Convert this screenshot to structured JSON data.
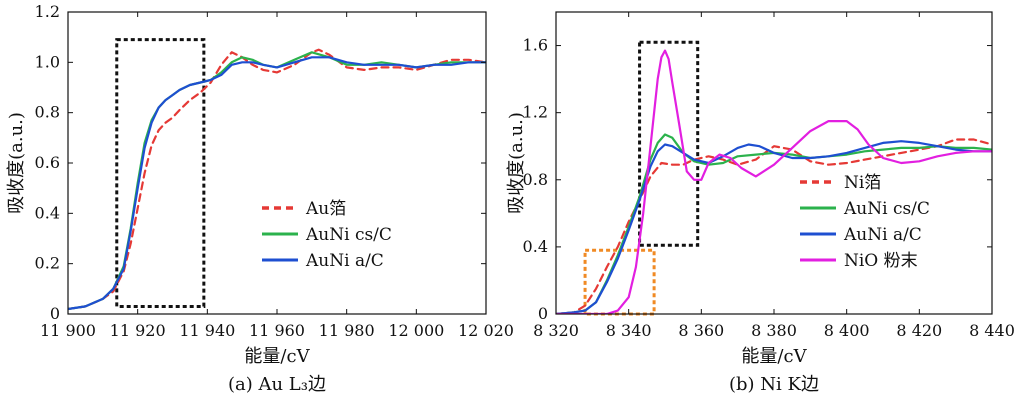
{
  "chart_data": [
    {
      "type": "line",
      "caption": "(a) Au L₃边",
      "xlabel": "能量/cV",
      "ylabel": "吸收度(a.u.)",
      "xlim": [
        11900,
        12020
      ],
      "ylim": [
        0,
        1.2
      ],
      "xticks": [
        11900,
        11920,
        11940,
        11960,
        11980,
        12000,
        12020
      ],
      "xtick_labels": [
        "11 900",
        "11 920",
        "11 940",
        "11 960",
        "11 980",
        "12 000",
        "12 020"
      ],
      "yticks": [
        0,
        0.2,
        0.4,
        0.6,
        0.8,
        1.0,
        1.2
      ],
      "ytick_labels": [
        "0",
        "0.2",
        "0.4",
        "0.6",
        "0.8",
        "1.0",
        "1.2"
      ],
      "legend_position": "right",
      "highlight_boxes": [
        {
          "x": [
            11914,
            11939
          ],
          "y": [
            0.03,
            1.09
          ],
          "color": "#111111"
        }
      ],
      "series": [
        {
          "name": "Au箔",
          "color": "#e53935",
          "dash": "dashed",
          "x": [
            11900,
            11905,
            11910,
            11913,
            11916,
            11918,
            11920,
            11922,
            11924,
            11926,
            11928,
            11930,
            11932,
            11935,
            11938,
            11941,
            11944,
            11947,
            11950,
            11953,
            11956,
            11960,
            11965,
            11970,
            11972,
            11975,
            11980,
            11985,
            11990,
            11995,
            12000,
            12005,
            12010,
            12015,
            12020
          ],
          "y": [
            0.02,
            0.03,
            0.06,
            0.09,
            0.17,
            0.28,
            0.42,
            0.56,
            0.67,
            0.73,
            0.76,
            0.78,
            0.81,
            0.85,
            0.88,
            0.92,
            0.99,
            1.04,
            1.02,
            0.99,
            0.97,
            0.96,
            0.99,
            1.04,
            1.05,
            1.03,
            0.98,
            0.97,
            0.98,
            0.98,
            0.97,
            0.99,
            1.01,
            1.01,
            1.0
          ]
        },
        {
          "name": "AuNi cs/C",
          "color": "#2bb24c",
          "dash": "solid",
          "x": [
            11900,
            11905,
            11910,
            11913,
            11916,
            11918,
            11920,
            11922,
            11924,
            11926,
            11928,
            11930,
            11932,
            11935,
            11938,
            11941,
            11944,
            11947,
            11950,
            11953,
            11956,
            11960,
            11965,
            11970,
            11975,
            11980,
            11985,
            11990,
            11995,
            12000,
            12005,
            12010,
            12015,
            12020
          ],
          "y": [
            0.02,
            0.03,
            0.06,
            0.1,
            0.19,
            0.34,
            0.52,
            0.68,
            0.77,
            0.82,
            0.85,
            0.87,
            0.89,
            0.91,
            0.92,
            0.93,
            0.96,
            1.0,
            1.02,
            1.01,
            0.99,
            0.98,
            1.01,
            1.04,
            1.02,
            0.99,
            0.99,
            1.0,
            0.99,
            0.98,
            0.99,
            1.0,
            1.0,
            1.0
          ]
        },
        {
          "name": "AuNi a/C",
          "color": "#1e4fd1",
          "dash": "solid",
          "x": [
            11900,
            11905,
            11910,
            11913,
            11916,
            11918,
            11920,
            11922,
            11924,
            11926,
            11928,
            11930,
            11932,
            11935,
            11938,
            11941,
            11944,
            11947,
            11950,
            11953,
            11956,
            11960,
            11965,
            11970,
            11975,
            11980,
            11985,
            11990,
            11995,
            12000,
            12005,
            12010,
            12015,
            12020
          ],
          "y": [
            0.02,
            0.03,
            0.06,
            0.1,
            0.18,
            0.33,
            0.5,
            0.66,
            0.76,
            0.82,
            0.85,
            0.87,
            0.89,
            0.91,
            0.92,
            0.93,
            0.95,
            0.99,
            1.0,
            1.0,
            0.99,
            0.98,
            1.0,
            1.02,
            1.02,
            1.0,
            0.99,
            0.99,
            0.99,
            0.98,
            0.99,
            0.99,
            1.0,
            1.0
          ]
        }
      ]
    },
    {
      "type": "line",
      "caption": "(b) Ni K边",
      "xlabel": "能量/cV",
      "ylabel": "吸收度(a.u.)",
      "xlim": [
        8320,
        8440
      ],
      "ylim": [
        0,
        1.8
      ],
      "xticks": [
        8320,
        8340,
        8360,
        8380,
        8400,
        8420,
        8440
      ],
      "xtick_labels": [
        "8 320",
        "8 340",
        "8 360",
        "8 380",
        "8 400",
        "8 420",
        "8 440"
      ],
      "yticks": [
        0,
        0.4,
        0.8,
        1.2,
        1.6
      ],
      "ytick_labels": [
        "0",
        "0.4",
        "0.8",
        "1.2",
        "1.6"
      ],
      "legend_position": "right",
      "highlight_boxes": [
        {
          "x": [
            8343,
            8359
          ],
          "y": [
            0.41,
            1.62
          ],
          "color": "#111111"
        },
        {
          "x": [
            8328,
            8347
          ],
          "y": [
            0.0,
            0.38
          ],
          "color": "#f08a24"
        }
      ],
      "series": [
        {
          "name": "Ni箔",
          "color": "#e53935",
          "dash": "dashed",
          "x": [
            8320,
            8325,
            8328,
            8331,
            8334,
            8337,
            8340,
            8343,
            8346,
            8349,
            8352,
            8355,
            8358,
            8362,
            8366,
            8370,
            8375,
            8380,
            8385,
            8390,
            8395,
            8400,
            8405,
            8410,
            8415,
            8420,
            8425,
            8430,
            8435,
            8440
          ],
          "y": [
            0.0,
            0.01,
            0.05,
            0.15,
            0.28,
            0.4,
            0.55,
            0.68,
            0.82,
            0.9,
            0.89,
            0.89,
            0.92,
            0.94,
            0.92,
            0.89,
            0.92,
            1.0,
            0.98,
            0.91,
            0.89,
            0.9,
            0.92,
            0.94,
            0.96,
            0.98,
            1.0,
            1.04,
            1.04,
            1.01
          ]
        },
        {
          "name": "AuNi cs/C",
          "color": "#2bb24c",
          "dash": "solid",
          "x": [
            8320,
            8325,
            8328,
            8331,
            8334,
            8337,
            8340,
            8343,
            8346,
            8348,
            8350,
            8352,
            8355,
            8358,
            8362,
            8366,
            8370,
            8375,
            8380,
            8385,
            8390,
            8395,
            8400,
            8405,
            8410,
            8415,
            8420,
            8425,
            8430,
            8435,
            8440
          ],
          "y": [
            0.0,
            0.01,
            0.02,
            0.07,
            0.2,
            0.35,
            0.52,
            0.7,
            0.92,
            1.02,
            1.07,
            1.05,
            0.96,
            0.91,
            0.89,
            0.9,
            0.94,
            0.95,
            0.96,
            0.95,
            0.93,
            0.94,
            0.95,
            0.97,
            0.98,
            0.99,
            0.99,
            1.0,
            0.99,
            0.99,
            0.98
          ]
        },
        {
          "name": "AuNi a/C",
          "color": "#1e4fd1",
          "dash": "solid",
          "x": [
            8320,
            8325,
            8328,
            8331,
            8334,
            8337,
            8340,
            8343,
            8346,
            8348,
            8350,
            8352,
            8355,
            8358,
            8362,
            8366,
            8370,
            8373,
            8376,
            8380,
            8385,
            8390,
            8395,
            8400,
            8405,
            8410,
            8415,
            8420,
            8425,
            8430,
            8435,
            8440
          ],
          "y": [
            0.0,
            0.01,
            0.02,
            0.07,
            0.19,
            0.33,
            0.5,
            0.68,
            0.88,
            0.97,
            1.01,
            1.0,
            0.96,
            0.92,
            0.9,
            0.94,
            0.99,
            1.01,
            1.0,
            0.96,
            0.93,
            0.93,
            0.94,
            0.96,
            0.99,
            1.02,
            1.03,
            1.02,
            1.0,
            0.98,
            0.97,
            0.97
          ]
        },
        {
          "name": "NiO 粉末",
          "color": "#e21fe0",
          "dash": "solid",
          "x": [
            8320,
            8330,
            8334,
            8337,
            8340,
            8342,
            8344,
            8346,
            8348,
            8349,
            8350,
            8351,
            8352,
            8354,
            8356,
            8358,
            8360,
            8362,
            8365,
            8368,
            8371,
            8375,
            8380,
            8385,
            8390,
            8395,
            8400,
            8403,
            8406,
            8410,
            8415,
            8420,
            8425,
            8430,
            8435,
            8440
          ],
          "y": [
            0.0,
            0.0,
            0.0,
            0.02,
            0.1,
            0.28,
            0.6,
            1.0,
            1.4,
            1.53,
            1.57,
            1.52,
            1.38,
            1.12,
            0.85,
            0.8,
            0.8,
            0.9,
            0.95,
            0.93,
            0.87,
            0.82,
            0.89,
            0.99,
            1.09,
            1.15,
            1.15,
            1.1,
            1.01,
            0.93,
            0.9,
            0.91,
            0.94,
            0.96,
            0.97,
            0.97
          ]
        }
      ]
    }
  ]
}
